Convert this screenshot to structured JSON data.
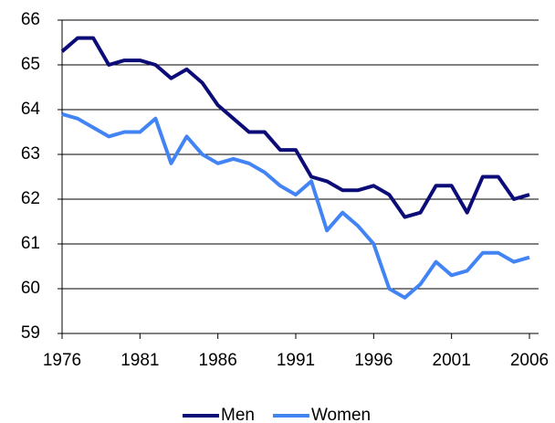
{
  "chart_data": {
    "type": "line",
    "x": [
      1976,
      1977,
      1978,
      1979,
      1980,
      1981,
      1982,
      1983,
      1984,
      1985,
      1986,
      1987,
      1988,
      1989,
      1990,
      1991,
      1992,
      1993,
      1994,
      1995,
      1996,
      1997,
      1998,
      1999,
      2000,
      2001,
      2002,
      2003,
      2004,
      2005,
      2006
    ],
    "series": [
      {
        "name": "Men",
        "color": "#0c0c78",
        "values": [
          65.3,
          65.6,
          65.6,
          65.0,
          65.1,
          65.1,
          65.0,
          64.7,
          64.9,
          64.6,
          64.1,
          63.8,
          63.5,
          63.5,
          63.1,
          63.1,
          62.5,
          62.4,
          62.2,
          62.2,
          62.3,
          62.1,
          61.6,
          61.7,
          62.3,
          62.3,
          61.7,
          62.5,
          62.5,
          62.0,
          62.1
        ]
      },
      {
        "name": "Women",
        "color": "#4384f5",
        "values": [
          63.9,
          63.8,
          63.6,
          63.4,
          63.5,
          63.5,
          63.8,
          62.8,
          63.4,
          63.0,
          62.8,
          62.9,
          62.8,
          62.6,
          62.3,
          62.1,
          62.4,
          61.3,
          61.7,
          61.4,
          61.0,
          60.0,
          59.8,
          60.1,
          60.6,
          60.3,
          60.4,
          60.8,
          60.8,
          60.6,
          60.7
        ]
      }
    ],
    "xlim": [
      1976,
      2006
    ],
    "xticks": [
      1976,
      1981,
      1986,
      1991,
      1996,
      2001,
      2006
    ],
    "ylim": [
      59,
      66
    ],
    "yticks": [
      59,
      60,
      61,
      62,
      63,
      64,
      65,
      66
    ],
    "grid": true,
    "legend": "bottom"
  }
}
